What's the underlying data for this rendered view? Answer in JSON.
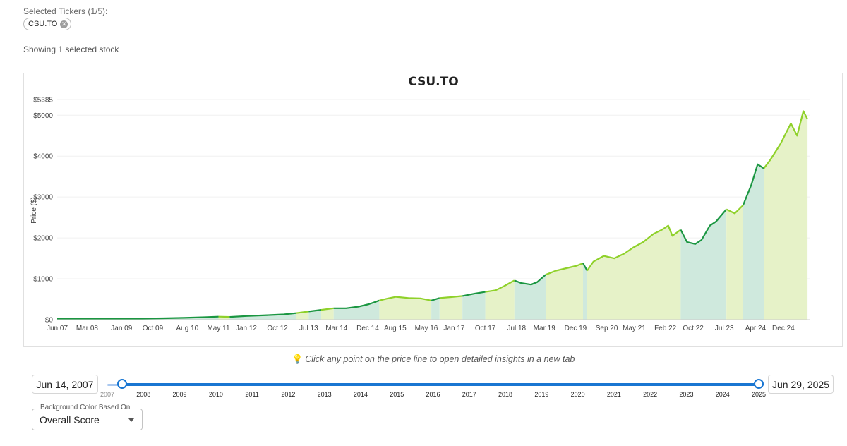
{
  "tickers": {
    "label": "Selected Tickers (1/5):",
    "items": [
      "CSU.TO"
    ]
  },
  "showing": "Showing 1 selected stock",
  "hint": "Click any point on the price line to open detailed insights in a new tab",
  "range": {
    "start": "Jun 14, 2007",
    "end": "Jun 29, 2025",
    "years": [
      "2007",
      "2008",
      "2009",
      "2010",
      "2011",
      "2012",
      "2013",
      "2014",
      "2015",
      "2016",
      "2017",
      "2018",
      "2019",
      "2020",
      "2021",
      "2022",
      "2023",
      "2024",
      "2025"
    ]
  },
  "background_select": {
    "label": "Background Color Based On",
    "value": "Overall Score"
  },
  "colors": {
    "dark_green": "#1a9641",
    "light_green": "#8fd12a",
    "band_dark": "#cfe9dd",
    "band_light": "#e6f2c8",
    "slider": "#1976d2"
  },
  "chart_data": {
    "type": "line",
    "title": "CSU.TO",
    "xlabel": "",
    "ylabel": "Price ($)",
    "xlim": [
      "2007-06",
      "2025-06"
    ],
    "ylim": [
      0,
      5385
    ],
    "yticks": [
      0,
      1000,
      2000,
      3000,
      4000,
      5000,
      5385
    ],
    "ytick_labels": [
      "$0",
      "$1000",
      "$2000",
      "$3000",
      "$4000",
      "$5000",
      "$5385"
    ],
    "xtick_labels": [
      "Jun 07",
      "Mar 08",
      "Jan 09",
      "Oct 09",
      "Aug 10",
      "May 11",
      "Jan 12",
      "Oct 12",
      "Jul 13",
      "Mar 14",
      "Dec 14",
      "Aug 15",
      "May 16",
      "Jan 17",
      "Oct 17",
      "Jul 18",
      "Mar 19",
      "Dec 19",
      "Sep 20",
      "May 21",
      "Feb 22",
      "Oct 22",
      "Jul 23",
      "Apr 24",
      "Dec 24"
    ],
    "xtick_years": [
      2007.45,
      2008.17,
      2009.0,
      2009.75,
      2010.58,
      2011.33,
      2012.0,
      2012.75,
      2013.5,
      2014.17,
      2014.92,
      2015.58,
      2016.33,
      2017.0,
      2017.75,
      2018.5,
      2019.17,
      2019.92,
      2020.67,
      2021.33,
      2022.08,
      2022.75,
      2023.5,
      2024.25,
      2024.92
    ],
    "grid": true,
    "series": [
      {
        "points": [
          [
            2007.45,
            20
          ],
          [
            2008.0,
            22
          ],
          [
            2008.5,
            25
          ],
          [
            2009.0,
            22
          ],
          [
            2009.5,
            28
          ],
          [
            2010.0,
            35
          ],
          [
            2010.5,
            45
          ],
          [
            2011.0,
            60
          ],
          [
            2011.33,
            75
          ],
          [
            2011.6,
            68
          ],
          [
            2012.0,
            90
          ],
          [
            2012.5,
            110
          ],
          [
            2012.9,
            130
          ],
          [
            2013.2,
            160
          ],
          [
            2013.5,
            200
          ],
          [
            2013.8,
            240
          ],
          [
            2014.1,
            280
          ],
          [
            2014.4,
            280
          ],
          [
            2014.7,
            320
          ],
          [
            2014.95,
            380
          ],
          [
            2015.2,
            470
          ],
          [
            2015.4,
            520
          ],
          [
            2015.6,
            560
          ],
          [
            2015.9,
            530
          ],
          [
            2016.2,
            520
          ],
          [
            2016.45,
            470
          ],
          [
            2016.65,
            530
          ],
          [
            2016.9,
            550
          ],
          [
            2017.2,
            580
          ],
          [
            2017.5,
            640
          ],
          [
            2017.75,
            680
          ],
          [
            2018.0,
            720
          ],
          [
            2018.2,
            820
          ],
          [
            2018.45,
            960
          ],
          [
            2018.6,
            900
          ],
          [
            2018.85,
            860
          ],
          [
            2019.0,
            920
          ],
          [
            2019.2,
            1100
          ],
          [
            2019.45,
            1200
          ],
          [
            2019.7,
            1260
          ],
          [
            2019.95,
            1320
          ],
          [
            2020.1,
            1380
          ],
          [
            2020.2,
            1200
          ],
          [
            2020.35,
            1420
          ],
          [
            2020.6,
            1560
          ],
          [
            2020.85,
            1500
          ],
          [
            2021.1,
            1620
          ],
          [
            2021.3,
            1760
          ],
          [
            2021.55,
            1900
          ],
          [
            2021.8,
            2100
          ],
          [
            2022.0,
            2200
          ],
          [
            2022.15,
            2300
          ],
          [
            2022.25,
            2050
          ],
          [
            2022.45,
            2200
          ],
          [
            2022.6,
            1900
          ],
          [
            2022.8,
            1850
          ],
          [
            2022.95,
            1950
          ],
          [
            2023.15,
            2300
          ],
          [
            2023.3,
            2400
          ],
          [
            2023.55,
            2700
          ],
          [
            2023.75,
            2600
          ],
          [
            2023.95,
            2800
          ],
          [
            2024.15,
            3300
          ],
          [
            2024.3,
            3800
          ],
          [
            2024.45,
            3700
          ],
          [
            2024.6,
            3900
          ],
          [
            2024.85,
            4300
          ],
          [
            2025.0,
            4600
          ],
          [
            2025.1,
            4800
          ],
          [
            2025.25,
            4500
          ],
          [
            2025.4,
            5100
          ],
          [
            2025.5,
            4900
          ]
        ],
        "regime_breaks": [
          2011.33,
          2011.6,
          2013.2,
          2013.5,
          2013.8,
          2014.1,
          2015.2,
          2016.45,
          2016.65,
          2017.2,
          2017.75,
          2018.45,
          2019.2,
          2020.1,
          2020.2,
          2022.45,
          2023.55,
          2023.95,
          2024.45,
          2025.5
        ],
        "regimes": [
          "dark",
          "light",
          "dark",
          "light",
          "dark",
          "light",
          "dark",
          "light",
          "dark",
          "light",
          "dark",
          "light",
          "dark",
          "light",
          "dark",
          "light",
          "dark",
          "light",
          "dark",
          "light"
        ]
      }
    ]
  }
}
